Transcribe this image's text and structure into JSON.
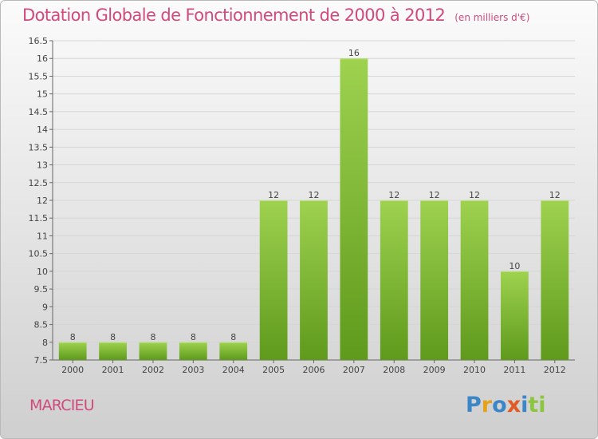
{
  "header": {
    "title": "Dotation Globale de Fonctionnement de 2000 à 2012",
    "subtitle": "(en milliers d'€)"
  },
  "footer": {
    "commune": "MARCIEU",
    "logo": [
      "P",
      "r",
      "o",
      "x",
      "i",
      "ti"
    ]
  },
  "colors": {
    "title": "#d14a7d",
    "bar_light": "#9ed24f",
    "bar_dark": "#5f9a1c",
    "grid": "#d6d6d6"
  },
  "chart_data": {
    "type": "bar",
    "categories": [
      "2000",
      "2001",
      "2002",
      "2003",
      "2004",
      "2005",
      "2006",
      "2007",
      "2008",
      "2009",
      "2010",
      "2011",
      "2012"
    ],
    "values": [
      8,
      8,
      8,
      8,
      8,
      12,
      12,
      16,
      12,
      12,
      12,
      10,
      12
    ],
    "data_labels": [
      "8",
      "8",
      "8",
      "8",
      "8",
      "12",
      "12",
      "16",
      "12",
      "12",
      "12",
      "10",
      "12"
    ],
    "ylim": [
      7.5,
      16.5
    ],
    "yticks": [
      "7.5",
      "8",
      "8.5",
      "9",
      "9.5",
      "10",
      "10.5",
      "11",
      "11.5",
      "12",
      "12.5",
      "13",
      "13.5",
      "14",
      "14.5",
      "15",
      "15.5",
      "16",
      "16.5"
    ],
    "grid": true
  }
}
